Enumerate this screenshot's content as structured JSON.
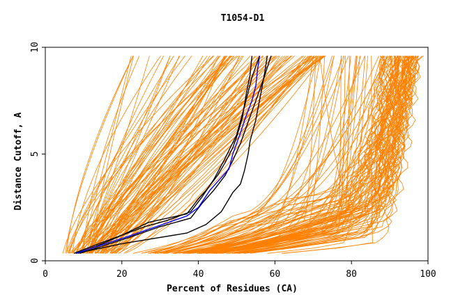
{
  "chart_data": {
    "type": "line",
    "title": "T1054-D1",
    "xlabel": "Percent of Residues (CA)",
    "ylabel": "Distance Cutoff, A",
    "xlim": [
      0,
      100
    ],
    "ylim": [
      0,
      10
    ],
    "x_ticks": [
      "0",
      "20",
      "40",
      "60",
      "80",
      "100"
    ],
    "y_ticks": [
      "0",
      "5",
      "10"
    ],
    "grid": false,
    "legend": "none",
    "colors": {
      "bulk": "#ff8000",
      "highlight_black": "#000000",
      "highlight_blue": "#0000ff",
      "frame": "#000000"
    },
    "series": [
      {
        "color": "#000000",
        "points": [
          [
            7.5,
            0.35
          ],
          [
            14,
            0.8
          ],
          [
            20,
            1.2
          ],
          [
            26,
            1.6
          ],
          [
            32,
            1.9
          ],
          [
            38,
            2.3
          ],
          [
            41,
            3.0
          ],
          [
            44,
            3.8
          ],
          [
            47,
            4.8
          ],
          [
            50,
            5.9
          ],
          [
            52,
            7.2
          ],
          [
            54,
            8.6
          ],
          [
            56,
            9.6
          ]
        ]
      },
      {
        "color": "#000000",
        "points": [
          [
            8,
            0.35
          ],
          [
            20,
            0.8
          ],
          [
            37,
            1.3
          ],
          [
            42,
            1.7
          ],
          [
            46,
            2.3
          ],
          [
            49,
            3.2
          ],
          [
            51,
            3.6
          ],
          [
            52,
            4.2
          ],
          [
            53,
            5.0
          ],
          [
            53.5,
            5.6
          ],
          [
            55,
            6.6
          ],
          [
            56.5,
            8.0
          ],
          [
            57.5,
            9.0
          ],
          [
            58,
            9.6
          ]
        ]
      },
      {
        "color": "#000000",
        "points": [
          [
            8.5,
            0.35
          ],
          [
            15,
            0.8
          ],
          [
            20,
            1.2
          ],
          [
            27,
            1.8
          ],
          [
            37,
            2.2
          ],
          [
            40,
            2.9
          ],
          [
            42,
            3.3
          ],
          [
            45,
            4.0
          ],
          [
            47,
            4.6
          ],
          [
            49,
            5.3
          ],
          [
            50,
            5.8
          ],
          [
            51.5,
            6.7
          ],
          [
            52.5,
            7.8
          ],
          [
            53.5,
            8.7
          ],
          [
            54,
            9.6
          ]
        ]
      },
      {
        "color": "#000000",
        "points": [
          [
            9,
            0.35
          ],
          [
            16,
            0.75
          ],
          [
            22,
            1.1
          ],
          [
            30,
            1.6
          ],
          [
            38,
            2.0
          ],
          [
            41,
            2.7
          ],
          [
            44,
            3.3
          ],
          [
            47,
            4.0
          ],
          [
            49,
            4.7
          ],
          [
            51,
            5.5
          ],
          [
            53,
            6.5
          ],
          [
            55,
            7.5
          ],
          [
            57,
            8.5
          ],
          [
            59,
            9.6
          ]
        ]
      },
      {
        "color": "#0000ff",
        "points": [
          [
            8,
            0.35
          ],
          [
            14,
            0.7
          ],
          [
            21,
            1.1
          ],
          [
            29,
            1.6
          ],
          [
            37,
            2.1
          ],
          [
            40,
            2.5
          ],
          [
            43,
            3.3
          ],
          [
            46,
            3.9
          ],
          [
            48,
            4.3
          ],
          [
            49,
            5.0
          ],
          [
            50,
            5.5
          ],
          [
            51,
            6.0
          ],
          [
            52.5,
            6.8
          ],
          [
            54,
            7.5
          ],
          [
            55,
            8.2
          ],
          [
            55.5,
            9.0
          ],
          [
            56,
            9.6
          ]
        ]
      }
    ]
  }
}
